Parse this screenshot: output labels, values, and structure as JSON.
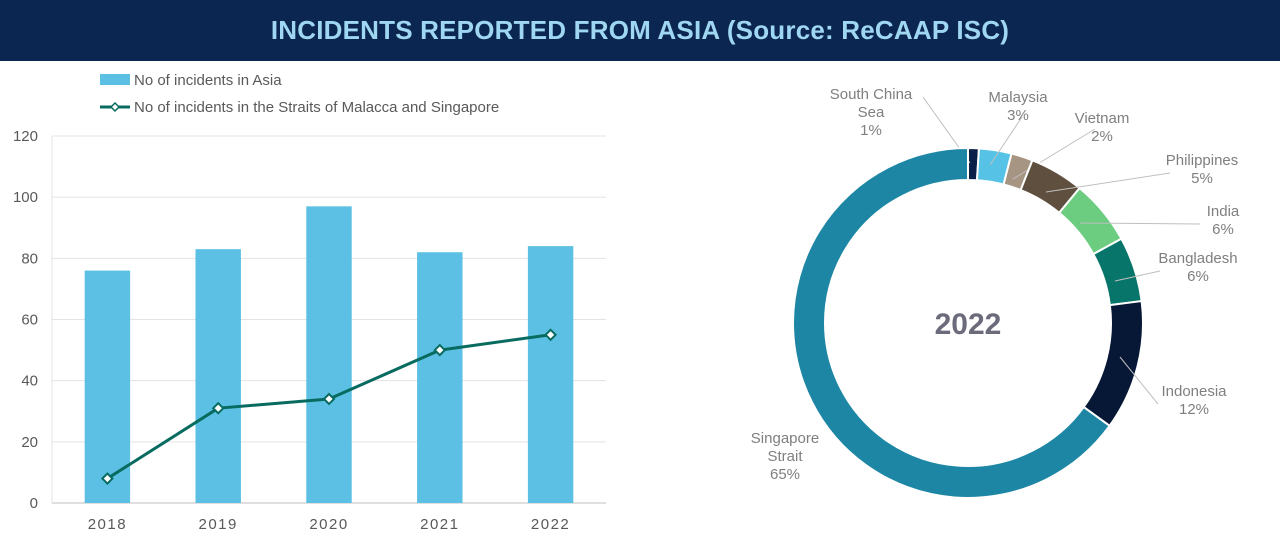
{
  "page": {
    "title": "INCIDENTS REPORTED FROM ASIA (Source: ReCAAP ISC)"
  },
  "chart_data": [
    {
      "type": "bar",
      "categories": [
        "2018",
        "2019",
        "2020",
        "2021",
        "2022"
      ],
      "ylim": [
        0,
        120
      ],
      "yticks": [
        "0",
        "20",
        "40",
        "60",
        "80",
        "100",
        "120"
      ],
      "grid": true,
      "legend_position": "top",
      "series": [
        {
          "name": "No of incidents in Asia",
          "kind": "bar",
          "color": "#5bc0e4",
          "values": [
            76,
            83,
            97,
            82,
            84
          ]
        },
        {
          "name": "No of incidents in the Straits of Malacca and Singapore",
          "kind": "line",
          "color": "#086b60",
          "values": [
            8,
            31,
            34,
            50,
            55
          ]
        }
      ]
    },
    {
      "type": "pie",
      "variant": "donut",
      "center_label": "2022",
      "slices": [
        {
          "label": "South China Sea",
          "label_lines": [
            "South China",
            "Sea"
          ],
          "value": 1,
          "pct_text": "1%",
          "color": "#0b2048"
        },
        {
          "label": "Malaysia",
          "label_lines": [
            "Malaysia"
          ],
          "value": 3,
          "pct_text": "3%",
          "color": "#56c2e6"
        },
        {
          "label": "Vietnam",
          "label_lines": [
            "Vietnam"
          ],
          "value": 2,
          "pct_text": "2%",
          "color": "#a79583"
        },
        {
          "label": "Philippines",
          "label_lines": [
            "Philippines"
          ],
          "value": 5,
          "pct_text": "5%",
          "color": "#5e4f3e"
        },
        {
          "label": "India",
          "label_lines": [
            "India"
          ],
          "value": 6,
          "pct_text": "6%",
          "color": "#6ccc80"
        },
        {
          "label": "Bangladesh",
          "label_lines": [
            "Bangladesh"
          ],
          "value": 6,
          "pct_text": "6%",
          "color": "#08756b"
        },
        {
          "label": "Indonesia",
          "label_lines": [
            "Indonesia"
          ],
          "value": 12,
          "pct_text": "12%",
          "color": "#061836"
        },
        {
          "label": "Singapore Strait",
          "label_lines": [
            "Singapore",
            "Strait"
          ],
          "value": 65,
          "pct_text": "65%",
          "color": "#1d86a4"
        }
      ]
    }
  ]
}
